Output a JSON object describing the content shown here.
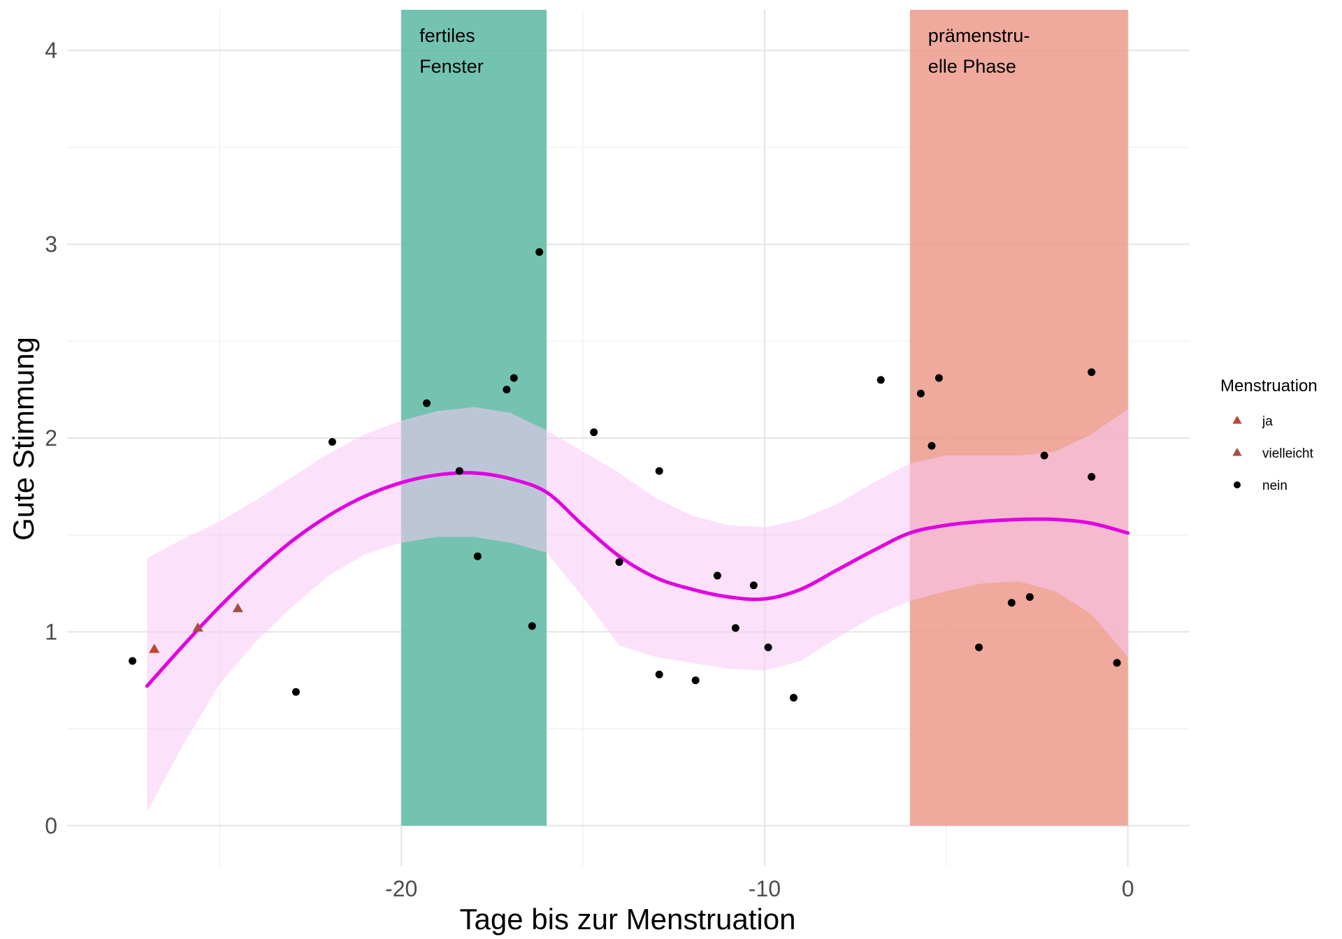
{
  "chart_data": {
    "type": "scatter",
    "title": "",
    "xlabel": "Tage bis zur Menstruation",
    "ylabel": "Gute Stimmung",
    "xlim": [
      -29.2,
      1.7
    ],
    "ylim": [
      -0.21,
      4.21
    ],
    "x_ticks": [
      -20,
      -10,
      0
    ],
    "x_tick_labels": [
      "-20",
      "-10",
      "0"
    ],
    "y_ticks": [
      0,
      1,
      2,
      3,
      4
    ],
    "y_tick_labels": [
      "0",
      "1",
      "2",
      "3",
      "4"
    ],
    "x_minor_ticks": [
      -25,
      -15,
      -5
    ],
    "y_minor_ticks": [
      0.5,
      1.5,
      2.5,
      3.5
    ],
    "grid": true,
    "regions": [
      {
        "name": "fertile-window",
        "x_start": -20,
        "x_end": -16,
        "label_lines": [
          "fertiles",
          "Fenster"
        ],
        "color": "#5cb8a3"
      },
      {
        "name": "premenstrual-phase",
        "x_start": -6,
        "x_end": 0,
        "label_lines": [
          "prämenstru-",
          "elle Phase"
        ],
        "color": "#ec9a8c"
      }
    ],
    "legend": {
      "title": "Menstruation",
      "position": "right",
      "entries": [
        {
          "label": "ja",
          "shape": "triangle",
          "color": "#c0452d"
        },
        {
          "label": "vielleicht",
          "shape": "triangle",
          "color": "#a34e45"
        },
        {
          "label": "nein",
          "shape": "circle",
          "color": "#000000"
        }
      ]
    },
    "series": [
      {
        "name": "ja",
        "shape": "triangle",
        "color": "#c0452d",
        "points": [
          [
            -26.8,
            0.91
          ]
        ]
      },
      {
        "name": "vielleicht",
        "shape": "triangle",
        "color": "#a34e45",
        "points": [
          [
            -25.6,
            1.02
          ],
          [
            -24.5,
            1.12
          ]
        ]
      },
      {
        "name": "nein",
        "shape": "circle",
        "color": "#000000",
        "points": [
          [
            -27.4,
            0.85
          ],
          [
            -22.9,
            0.69
          ],
          [
            -21.9,
            1.98
          ],
          [
            -19.3,
            2.18
          ],
          [
            -18.4,
            1.83
          ],
          [
            -17.9,
            1.39
          ],
          [
            -17.1,
            2.25
          ],
          [
            -16.9,
            2.31
          ],
          [
            -16.2,
            2.96
          ],
          [
            -16.4,
            1.03
          ],
          [
            -14.7,
            2.03
          ],
          [
            -14.0,
            1.36
          ],
          [
            -12.9,
            0.78
          ],
          [
            -12.9,
            1.83
          ],
          [
            -11.9,
            0.75
          ],
          [
            -11.3,
            1.29
          ],
          [
            -10.8,
            1.02
          ],
          [
            -10.3,
            1.24
          ],
          [
            -9.9,
            0.92
          ],
          [
            -9.2,
            0.66
          ],
          [
            -6.8,
            2.3
          ],
          [
            -5.7,
            2.23
          ],
          [
            -5.4,
            1.96
          ],
          [
            -5.2,
            2.31
          ],
          [
            -4.1,
            0.92
          ],
          [
            -3.2,
            1.15
          ],
          [
            -2.7,
            1.18
          ],
          [
            -2.3,
            1.91
          ],
          [
            -1.0,
            2.34
          ],
          [
            -1.0,
            1.8
          ],
          [
            -0.3,
            0.84
          ]
        ]
      }
    ],
    "smooth": {
      "color": "#e000e0",
      "band_color": "#f9c8f6",
      "x": [
        -27.0,
        -26.0,
        -25.0,
        -24.0,
        -23.0,
        -22.0,
        -21.0,
        -20.0,
        -19.0,
        -18.0,
        -17.0,
        -16.0,
        -15.0,
        -14.0,
        -13.0,
        -12.0,
        -11.0,
        -10.0,
        -9.0,
        -8.0,
        -7.0,
        -6.0,
        -5.0,
        -4.0,
        -3.0,
        -2.0,
        -1.0,
        0.0
      ],
      "y": [
        0.72,
        0.93,
        1.13,
        1.31,
        1.47,
        1.6,
        1.7,
        1.77,
        1.81,
        1.82,
        1.79,
        1.72,
        1.55,
        1.39,
        1.28,
        1.22,
        1.18,
        1.17,
        1.22,
        1.32,
        1.42,
        1.51,
        1.55,
        1.57,
        1.58,
        1.58,
        1.56,
        1.51
      ],
      "lower": [
        0.07,
        0.42,
        0.73,
        0.95,
        1.13,
        1.29,
        1.4,
        1.46,
        1.49,
        1.49,
        1.46,
        1.41,
        1.18,
        0.93,
        0.87,
        0.84,
        0.81,
        0.8,
        0.85,
        0.97,
        1.08,
        1.16,
        1.21,
        1.25,
        1.26,
        1.21,
        1.09,
        0.87
      ],
      "upper": [
        1.38,
        1.48,
        1.57,
        1.68,
        1.8,
        1.92,
        2.02,
        2.09,
        2.14,
        2.16,
        2.13,
        2.04,
        1.93,
        1.82,
        1.69,
        1.6,
        1.55,
        1.54,
        1.58,
        1.66,
        1.77,
        1.87,
        1.91,
        1.91,
        1.91,
        1.93,
        2.02,
        2.15
      ]
    }
  }
}
